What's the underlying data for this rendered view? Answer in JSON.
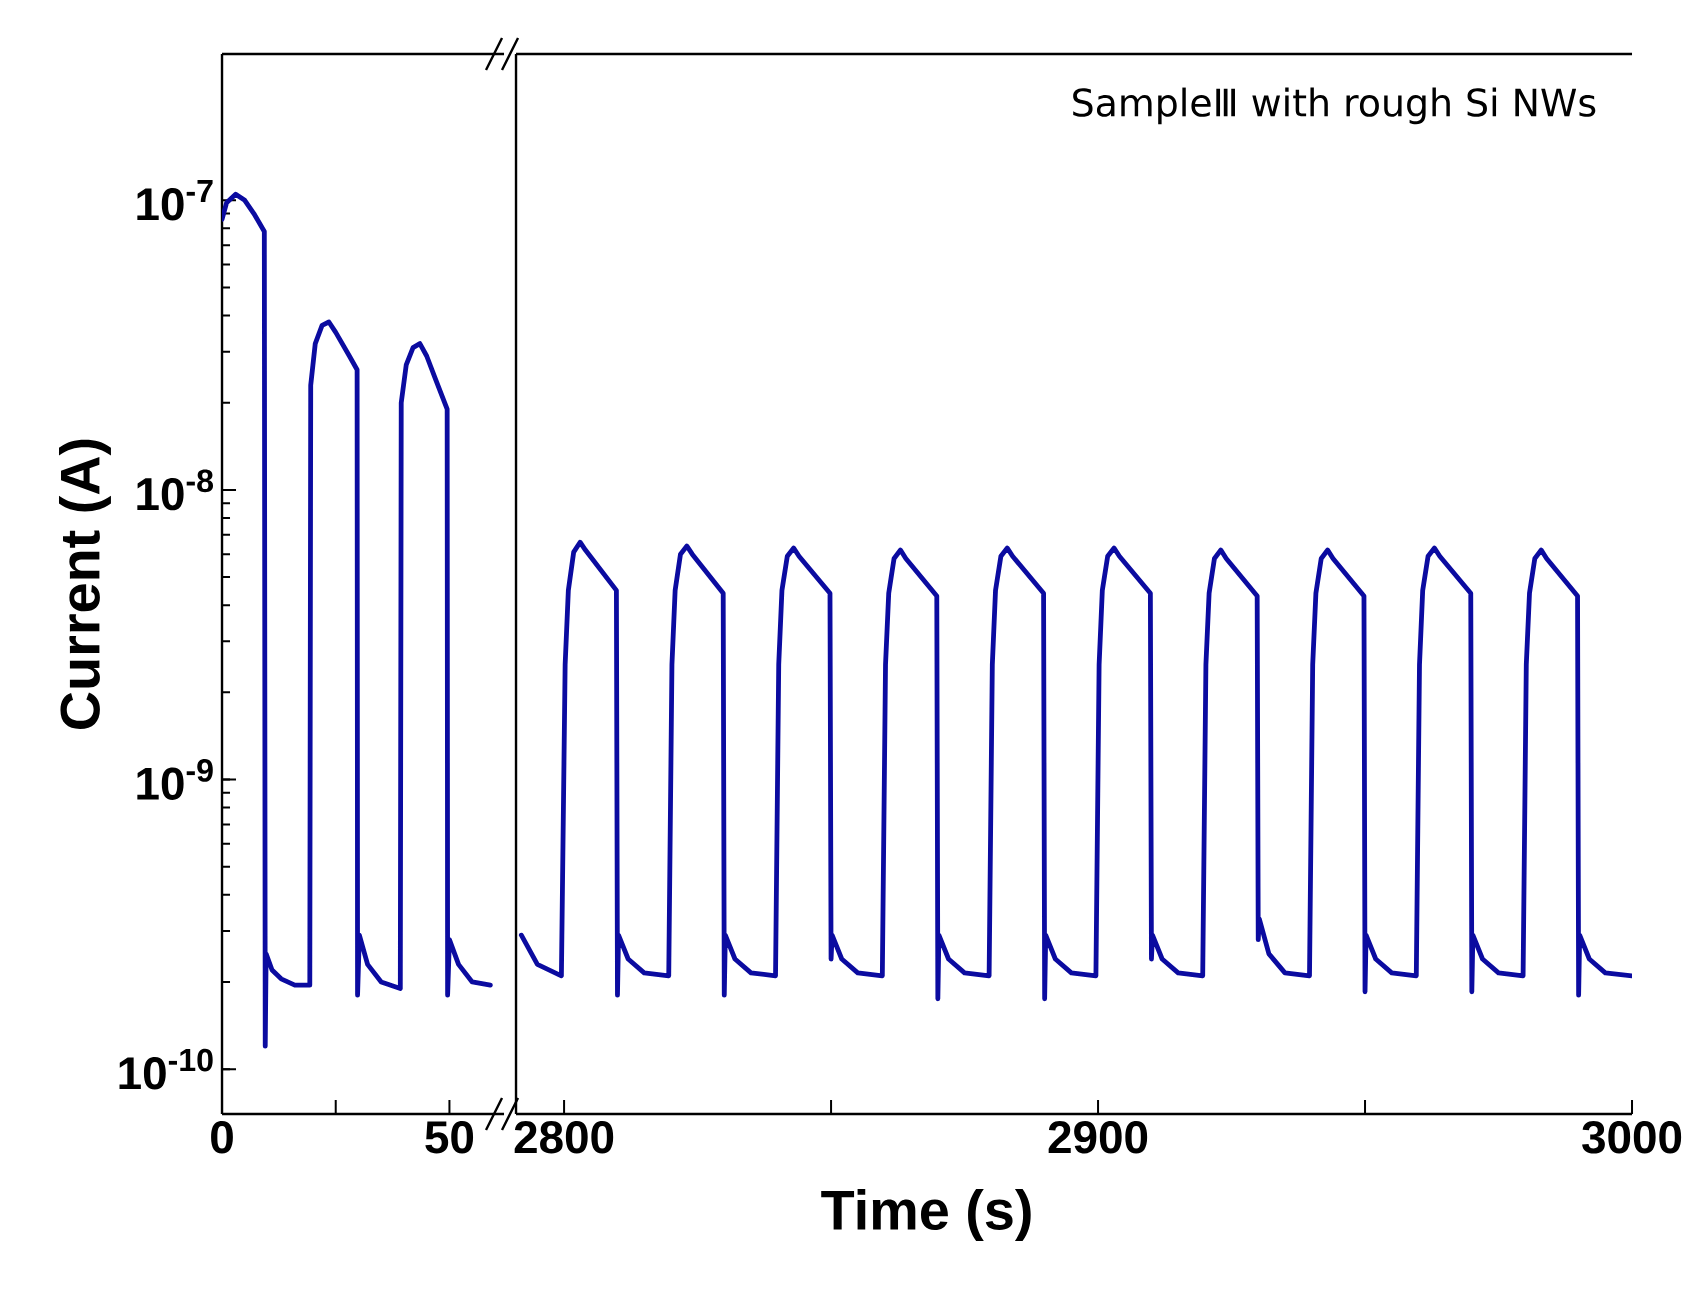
{
  "chart_data": [
    {
      "type": "line",
      "ylabel": "Current (A)",
      "log": true,
      "marker": "none",
      "line_style": "solid",
      "xlim": [
        0,
        62
      ],
      "xticks": [
        0,
        {
          "value": 25,
          "label": null
        },
        50
      ],
      "ylim": [
        7e-11,
        3.2e-07
      ],
      "yticks": [
        {
          "value": 1e-10,
          "label": "10$^{-10}$"
        },
        {
          "value": 1e-09,
          "label": "10$^{-9}$"
        },
        {
          "value": 1e-08,
          "label": "10$^{-8}$"
        },
        {
          "value": 1e-07,
          "label": "10$^{-7}$"
        }
      ],
      "series": [
        {
          "color": "#0b0ba0",
          "x": [
            0,
            1,
            3,
            5,
            7,
            9.3,
            9.5,
            9.7,
            11,
            13,
            16,
            19.3,
            19.5,
            20.5,
            22,
            23.5,
            25,
            28,
            29.7,
            29.8,
            30.2,
            32,
            35,
            39.2,
            39.4,
            40.5,
            42,
            43.5,
            45,
            47,
            49.5,
            49.6,
            50,
            52,
            55,
            59
          ],
          "values": [
            8.6e-08,
            9.8e-08,
            1.05e-07,
            1e-07,
            9e-08,
            7.8e-08,
            1.2e-10,
            2.5e-10,
            2.2e-10,
            2.05e-10,
            1.95e-10,
            1.95e-10,
            2.3e-08,
            3.2e-08,
            3.7e-08,
            3.8e-08,
            3.5e-08,
            2.9e-08,
            2.6e-08,
            1.8e-10,
            2.9e-10,
            2.3e-10,
            2e-10,
            1.9e-10,
            2e-08,
            2.7e-08,
            3.1e-08,
            3.2e-08,
            2.9e-08,
            2.4e-08,
            1.9e-08,
            1.8e-10,
            2.8e-10,
            2.3e-10,
            2e-10,
            1.95e-10
          ]
        }
      ]
    },
    {
      "type": "line",
      "xlabel": "Time (s)",
      "annotations": [
        "SampleⅢ with rough Si NWs"
      ],
      "log": true,
      "marker": "none",
      "line_style": "solid",
      "tick_labels": "x",
      "xlim": [
        2791,
        3000
      ],
      "xticks": [
        2800,
        {
          "value": 2850,
          "label": null
        },
        2900,
        {
          "value": 2950,
          "label": null
        },
        3000
      ],
      "ylim": [
        7e-11,
        3.2e-07
      ],
      "series": [
        {
          "color": "#0b0ba0",
          "x": [
            2792,
            2795,
            2799.5,
            2800.2,
            2800.8,
            2801.8,
            2803,
            2804,
            2809.8,
            2810,
            2810.2,
            2812,
            2815,
            2819.6,
            2820.2,
            2820.8,
            2821.8,
            2823,
            2824,
            2829.8,
            2830,
            2830.2,
            2832,
            2835,
            2839.6,
            2840.2,
            2840.8,
            2841.8,
            2843,
            2844,
            2849.8,
            2850,
            2850.2,
            2852,
            2855,
            2859.6,
            2860.2,
            2860.8,
            2861.8,
            2863,
            2864,
            2869.8,
            2870,
            2870.2,
            2872,
            2875,
            2879.6,
            2880.2,
            2880.8,
            2881.8,
            2883,
            2884,
            2889.8,
            2890,
            2890.2,
            2892,
            2895,
            2899.6,
            2900.2,
            2900.8,
            2901.8,
            2903,
            2904,
            2909.8,
            2910,
            2910.2,
            2912,
            2915,
            2919.6,
            2920.2,
            2920.8,
            2921.8,
            2923,
            2924,
            2929.8,
            2930,
            2930.2,
            2932,
            2935,
            2939.6,
            2940.2,
            2940.8,
            2941.8,
            2943,
            2944,
            2949.8,
            2950,
            2950.2,
            2952,
            2955,
            2959.6,
            2960.2,
            2960.8,
            2961.8,
            2963,
            2964,
            2969.8,
            2970,
            2970.2,
            2972,
            2975,
            2979.6,
            2980.2,
            2980.8,
            2981.8,
            2983,
            2984,
            2989.8,
            2990,
            2990.2,
            2992,
            2995,
            3000
          ],
          "values": [
            2.9e-10,
            2.3e-10,
            2.1e-10,
            2.5e-09,
            4.5e-09,
            6.1e-09,
            6.6e-09,
            6.2e-09,
            4.5e-09,
            1.8e-10,
            2.9e-10,
            2.4e-10,
            2.15e-10,
            2.1e-10,
            2.5e-09,
            4.5e-09,
            6e-09,
            6.4e-09,
            6e-09,
            4.4e-09,
            1.8e-10,
            2.9e-10,
            2.4e-10,
            2.15e-10,
            2.1e-10,
            2.5e-09,
            4.5e-09,
            5.9e-09,
            6.3e-09,
            5.9e-09,
            4.4e-09,
            2.4e-10,
            2.9e-10,
            2.4e-10,
            2.15e-10,
            2.1e-10,
            2.5e-09,
            4.4e-09,
            5.8e-09,
            6.2e-09,
            5.8e-09,
            4.3e-09,
            1.75e-10,
            2.9e-10,
            2.4e-10,
            2.15e-10,
            2.1e-10,
            2.5e-09,
            4.5e-09,
            5.9e-09,
            6.3e-09,
            5.9e-09,
            4.4e-09,
            1.75e-10,
            2.9e-10,
            2.4e-10,
            2.15e-10,
            2.1e-10,
            2.5e-09,
            4.5e-09,
            5.9e-09,
            6.3e-09,
            5.9e-09,
            4.4e-09,
            2.4e-10,
            2.9e-10,
            2.4e-10,
            2.15e-10,
            2.1e-10,
            2.5e-09,
            4.4e-09,
            5.8e-09,
            6.2e-09,
            5.8e-09,
            4.3e-09,
            2.8e-10,
            3.3e-10,
            2.5e-10,
            2.15e-10,
            2.1e-10,
            2.5e-09,
            4.4e-09,
            5.8e-09,
            6.2e-09,
            5.8e-09,
            4.3e-09,
            1.85e-10,
            2.9e-10,
            2.4e-10,
            2.15e-10,
            2.1e-10,
            2.5e-09,
            4.5e-09,
            5.9e-09,
            6.3e-09,
            5.9e-09,
            4.4e-09,
            1.85e-10,
            2.9e-10,
            2.4e-10,
            2.15e-10,
            2.1e-10,
            2.5e-09,
            4.4e-09,
            5.8e-09,
            6.2e-09,
            5.8e-09,
            4.3e-09,
            1.8e-10,
            2.9e-10,
            2.4e-10,
            2.15e-10,
            2.1e-10
          ]
        }
      ]
    }
  ]
}
